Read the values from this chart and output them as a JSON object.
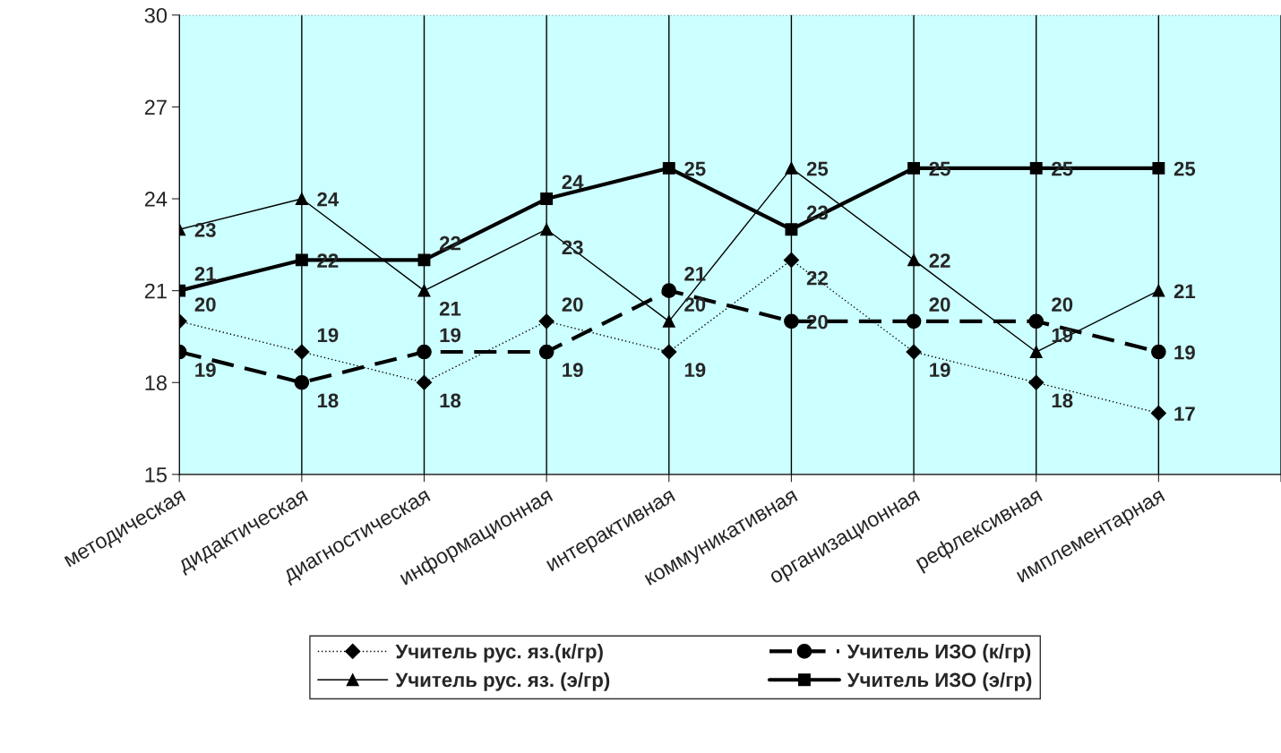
{
  "chart_data": {
    "type": "line",
    "categories": [
      "методическая",
      "дидактическая",
      "диагностическая",
      "информационная",
      "интерактивная",
      "коммуникативная",
      "организационная",
      "рефлексивная",
      "имплементарная",
      null
    ],
    "series": [
      {
        "name": "Учитель рус. яз.(к/гр)",
        "color": "#000000",
        "marker": "diamond",
        "line_style": "dotted",
        "values": [
          20,
          19,
          18,
          20,
          19,
          22,
          19,
          18,
          17,
          null
        ]
      },
      {
        "name": "Учитель рус. яз. (э/гр)",
        "color": "#000000",
        "marker": "triangle",
        "line_style": "solid",
        "values": [
          23,
          24,
          21,
          23,
          20,
          25,
          22,
          19,
          21,
          null
        ]
      },
      {
        "name": "Учитель ИЗО (к/гр)",
        "color": "#000000",
        "marker": "circle",
        "line_style": "dashed",
        "values": [
          19,
          18,
          19,
          19,
          21,
          20,
          20,
          20,
          19,
          null
        ]
      },
      {
        "name": "Учитель ИЗО (э/гр)",
        "color": "#000000",
        "marker": "square",
        "line_style": "solid",
        "values": [
          21,
          22,
          22,
          24,
          25,
          23,
          25,
          25,
          25,
          null
        ]
      }
    ],
    "ylim": [
      15,
      30
    ],
    "yticks": [
      15,
      18,
      21,
      24,
      27,
      30
    ],
    "grid": "x",
    "legend": "bottom",
    "data_labels": true
  }
}
